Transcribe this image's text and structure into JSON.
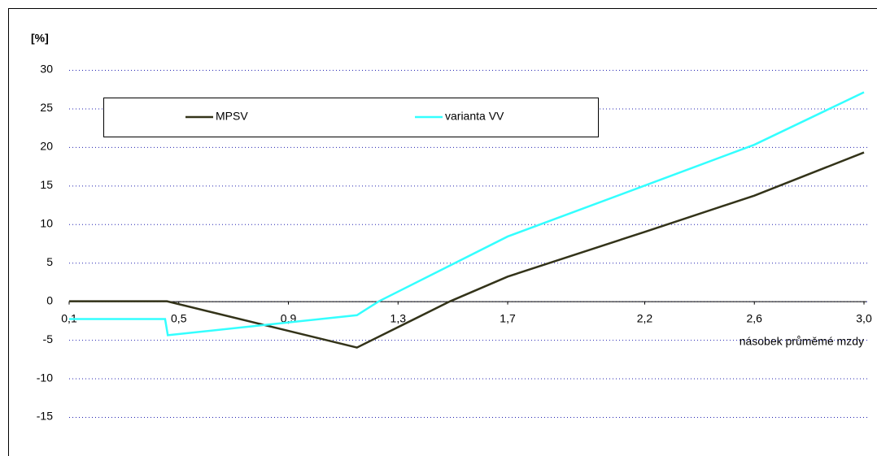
{
  "chart_data": {
    "type": "line",
    "y_label": "[%]",
    "x_label": "násobek průměmé mzdy",
    "xlim": [
      0.1,
      3.0
    ],
    "xticks": [
      {
        "value": 0.1,
        "label": "0,1"
      },
      {
        "value": 0.5,
        "label": "0,5"
      },
      {
        "value": 0.9,
        "label": "0,9"
      },
      {
        "value": 1.3,
        "label": "1,3"
      },
      {
        "value": 1.7,
        "label": "1,7"
      },
      {
        "value": 2.2,
        "label": "2,2"
      },
      {
        "value": 2.6,
        "label": "2,6"
      },
      {
        "value": 3.0,
        "label": "3,0"
      }
    ],
    "ylim": [
      -15,
      30
    ],
    "yticks": [
      -15,
      -10,
      -5,
      0,
      5,
      10,
      15,
      20,
      25,
      30
    ],
    "grid": true,
    "series": [
      {
        "name": "MPSV",
        "color": "#333319",
        "x": [
          0.1,
          0.457,
          1.15,
          1.49,
          1.7,
          2.2,
          2.6,
          3.0
        ],
        "values": [
          0,
          0,
          -6,
          0,
          3.2,
          9.0,
          13.7,
          19.3
        ]
      },
      {
        "name": "varianta VV",
        "color": "#33ffff",
        "x": [
          0.1,
          0.45,
          0.46,
          1.15,
          1.23,
          1.7,
          2.2,
          2.6,
          3.0
        ],
        "values": [
          -2.3,
          -2.3,
          -4.4,
          -1.8,
          0,
          8.4,
          15.0,
          20.3,
          27.1
        ]
      }
    ]
  }
}
